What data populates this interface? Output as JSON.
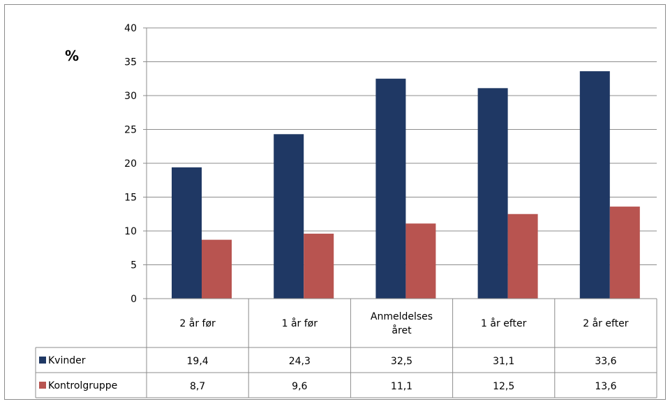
{
  "chart_data": {
    "type": "bar",
    "unit_label": "%",
    "categories": [
      [
        "2 år før"
      ],
      [
        "1 år før"
      ],
      [
        "Anmeldelses",
        "året"
      ],
      [
        "1 år efter"
      ],
      [
        "2 år efter"
      ]
    ],
    "series": [
      {
        "name": "Kvinder",
        "color": "#1f3864",
        "values": [
          19.4,
          24.3,
          32.5,
          31.1,
          33.6
        ],
        "labels": [
          "19,4",
          "24,3",
          "32,5",
          "31,1",
          "33,6"
        ]
      },
      {
        "name": "Kontrolgruppe",
        "color": "#b85450",
        "values": [
          8.7,
          9.6,
          11.1,
          12.5,
          13.6
        ],
        "labels": [
          "8,7",
          "9,6",
          "11,1",
          "12,5",
          "13,6"
        ]
      }
    ],
    "ylim": [
      0,
      40
    ],
    "yticks": [
      0,
      5,
      10,
      15,
      20,
      25,
      30,
      35,
      40
    ],
    "grid": true,
    "legend": "data-table"
  }
}
